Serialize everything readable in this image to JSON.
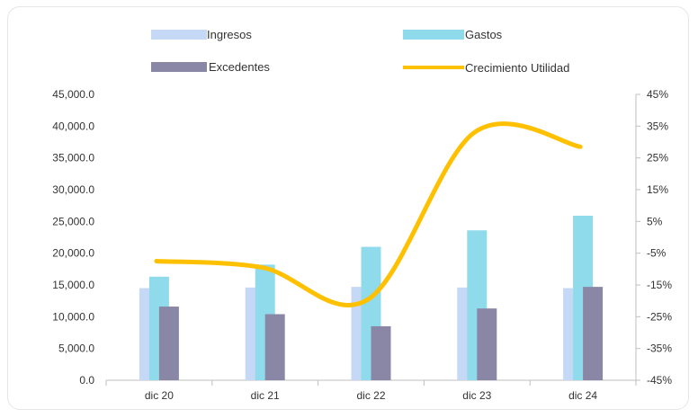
{
  "chart_data": {
    "type": "bar",
    "categories": [
      "dic 20",
      "dic 21",
      "dic 22",
      "dic 23",
      "dic 24"
    ],
    "series": [
      {
        "name": "Ingresos",
        "kind": "bar",
        "axis": "left",
        "color": "#c5d8f5",
        "values": [
          14500,
          14600,
          14700,
          14600,
          14500
        ]
      },
      {
        "name": "Gastos",
        "kind": "bar",
        "axis": "left",
        "color": "#8fdbeb",
        "values": [
          16300,
          18200,
          21000,
          23600,
          25900
        ]
      },
      {
        "name": "Excedentes",
        "kind": "bar",
        "axis": "left",
        "color": "#8a87a6",
        "values": [
          11600,
          10400,
          8500,
          11300,
          14700
        ]
      },
      {
        "name": "Crecimiento Utilidad",
        "kind": "line",
        "axis": "right",
        "color": "#ffc000",
        "values": [
          -7.5,
          -9.5,
          -19.5,
          33,
          28.5
        ]
      }
    ],
    "y_left": {
      "min": 0,
      "max": 45000,
      "ticks": [
        "0.0",
        "5,000.0",
        "10,000.0",
        "15,000.0",
        "20,000.0",
        "25,000.0",
        "30,000.0",
        "35,000.0",
        "40,000.0",
        "45,000.0"
      ]
    },
    "y_right": {
      "min": -45,
      "max": 45,
      "ticks": [
        "-45%",
        "-35%",
        "-25%",
        "-15%",
        "-5%",
        "5%",
        "15%",
        "25%",
        "35%",
        "45%"
      ]
    },
    "grid": false,
    "legend_position": "top"
  },
  "legend": [
    {
      "label": "Ingresos",
      "type": "box",
      "color": "#c5d8f5"
    },
    {
      "label": "Gastos",
      "type": "box",
      "color": "#8fdbeb"
    },
    {
      "label": "Excedentes",
      "type": "box",
      "color": "#8a87a6"
    },
    {
      "label": "Crecimiento Utilidad",
      "type": "line",
      "color": "#ffc000"
    }
  ]
}
